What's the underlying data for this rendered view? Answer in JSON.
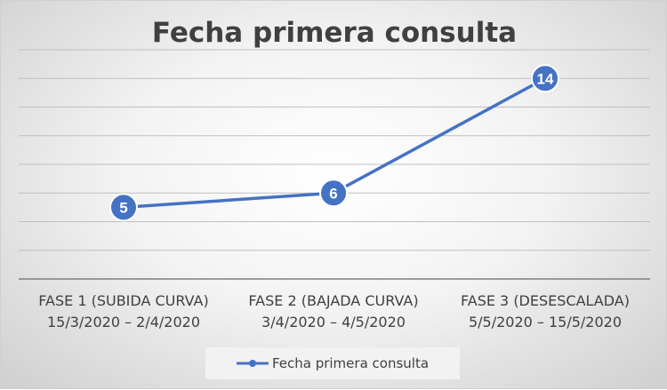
{
  "chart_data": {
    "type": "line",
    "title": "Fecha primera consulta",
    "categories": [
      [
        "FASE 1 (SUBIDA CURVA)",
        "15/3/2020 – 2/4/2020"
      ],
      [
        "FASE 2 (BAJADA CURVA)",
        "3/4/2020 – 4/5/2020"
      ],
      [
        "FASE 3 (DESESCALADA)",
        "5/5/2020 – 15/5/2020"
      ]
    ],
    "series": [
      {
        "name": "Fecha primera consulta",
        "values": [
          5,
          6,
          14
        ],
        "color": "#4472c4"
      }
    ],
    "data_labels": [
      "5",
      "6",
      "14"
    ],
    "ylim": [
      0,
      16
    ],
    "grid": true,
    "legend": "bottom"
  }
}
